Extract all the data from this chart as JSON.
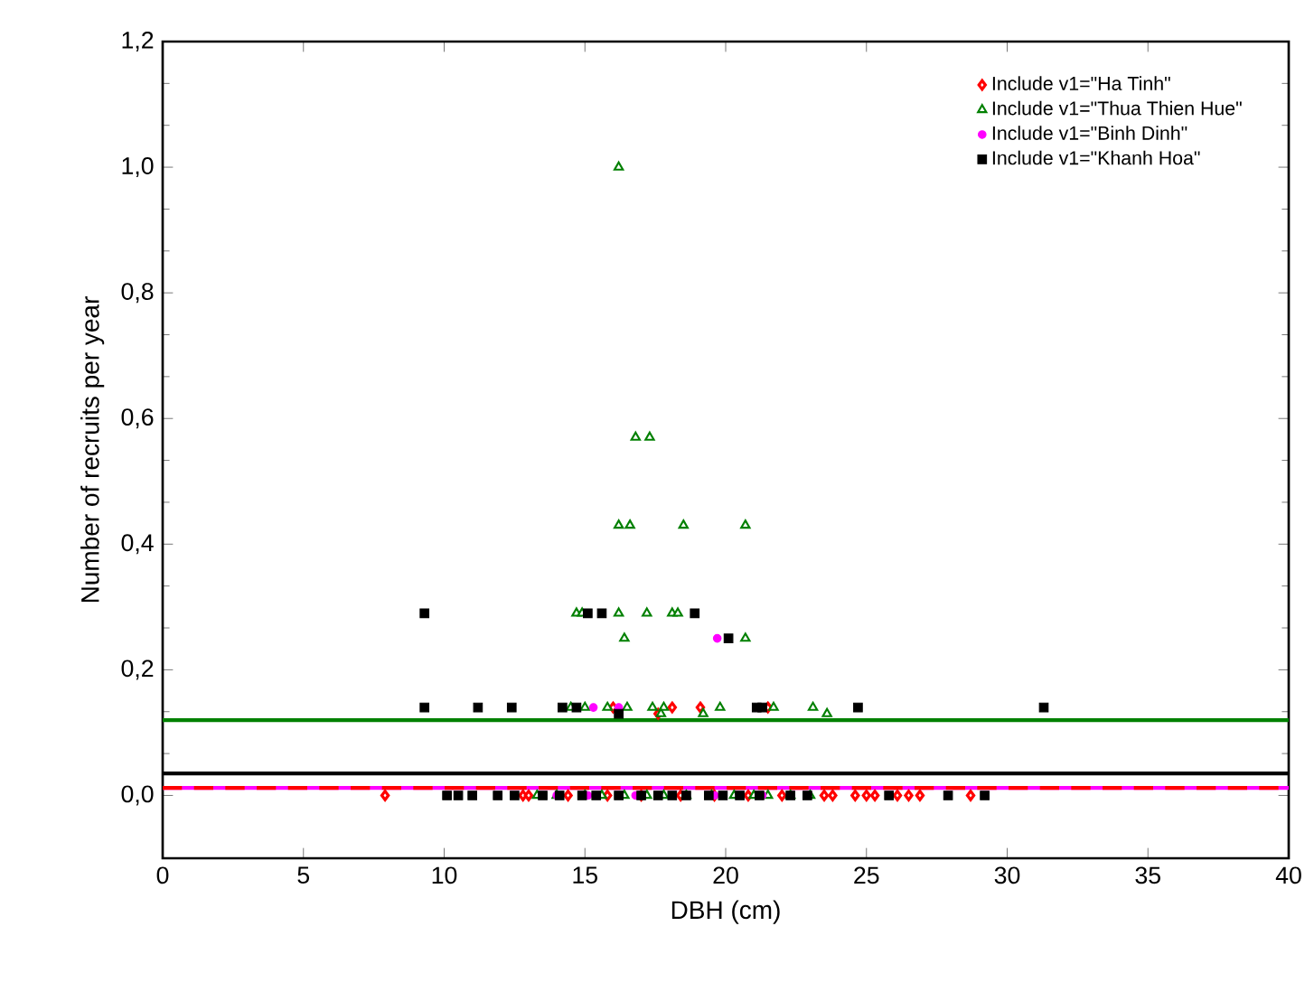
{
  "chart_data": {
    "type": "scatter",
    "xlabel": "DBH (cm)",
    "ylabel": "Number of recruits per year",
    "xlim": [
      0,
      40
    ],
    "xticks": [
      0,
      5,
      10,
      15,
      20,
      25,
      30,
      35,
      40
    ],
    "ylim": [
      -0.1,
      1.2
    ],
    "yticks": [
      {
        "value": 0,
        "label": "0,0"
      },
      {
        "value": 0.2,
        "label": "0,2"
      },
      {
        "value": 0.4,
        "label": "0,4"
      },
      {
        "value": 0.6,
        "label": "0,6"
      },
      {
        "value": 0.8,
        "label": "0,8"
      },
      {
        "value": 1.0,
        "label": "1,0"
      },
      {
        "value": 1.2,
        "label": "1,2"
      }
    ],
    "legend": "top right",
    "grid": false,
    "series": [
      {
        "name": "Include v1=\"Ha Tinh\"",
        "color": "#ff0000",
        "marker": "diamond",
        "x": [
          7.9,
          12.8,
          13.0,
          14.4,
          15.8,
          17.0,
          18.4,
          19.6,
          20.8,
          22.0,
          23.5,
          23.8,
          24.6,
          25.0,
          25.3,
          26.1,
          26.5,
          26.9,
          28.7,
          16.0,
          18.1,
          19.1,
          21.5,
          17.6
        ],
        "values": [
          0,
          0,
          0,
          0,
          0,
          0,
          0,
          0,
          0,
          0,
          0,
          0,
          0,
          0,
          0,
          0,
          0,
          0,
          0,
          0.14,
          0.14,
          0.14,
          0.14,
          0.13
        ]
      },
      {
        "name": "Include v1=\"Thua Thien Hue\"",
        "color": "#008000",
        "marker": "triangle",
        "x": [
          13.3,
          14.0,
          15.0,
          15.6,
          16.4,
          17.2,
          17.8,
          18.6,
          19.5,
          20.3,
          21.0,
          21.5,
          22.3,
          23.0,
          16.2,
          16.8,
          17.3,
          16.2,
          16.6,
          18.5,
          20.7,
          14.7,
          14.9,
          16.2,
          17.2,
          18.1,
          18.3,
          16.4,
          20.7,
          14.5,
          15.0,
          15.8,
          16.5,
          17.4,
          17.8,
          19.8,
          21.7,
          23.1,
          17.7,
          19.2,
          23.6
        ],
        "values": [
          0,
          0,
          0,
          0,
          0,
          0,
          0,
          0,
          0,
          0,
          0,
          0,
          0,
          0,
          1.0,
          0.57,
          0.57,
          0.43,
          0.43,
          0.43,
          0.43,
          0.29,
          0.29,
          0.29,
          0.29,
          0.29,
          0.29,
          0.25,
          0.25,
          0.14,
          0.14,
          0.14,
          0.14,
          0.14,
          0.14,
          0.14,
          0.14,
          0.14,
          0.13,
          0.13,
          0.13
        ]
      },
      {
        "name": "Include v1=\"Binh Dinh\"",
        "color": "#ff00ff",
        "marker": "circle",
        "x": [
          14.0,
          15.1,
          16.8,
          19.6,
          21.3,
          19.7,
          15.3,
          16.2
        ],
        "values": [
          0,
          0,
          0,
          0,
          0,
          0.25,
          0.14,
          0.14
        ]
      },
      {
        "name": "Include v1=\"Khanh Hoa\"",
        "color": "#000000",
        "marker": "square",
        "x": [
          10.1,
          10.5,
          11.0,
          11.9,
          12.5,
          13.5,
          14.1,
          14.9,
          15.4,
          16.2,
          17.0,
          17.6,
          18.1,
          18.6,
          19.4,
          19.9,
          20.5,
          21.2,
          22.3,
          22.9,
          25.8,
          27.9,
          29.2,
          9.3,
          15.1,
          15.6,
          18.9,
          20.1,
          9.3,
          11.2,
          12.4,
          14.2,
          14.7,
          21.1,
          21.3,
          24.7,
          31.3,
          16.2
        ],
        "values": [
          0,
          0,
          0,
          0,
          0,
          0,
          0,
          0,
          0,
          0,
          0,
          0,
          0,
          0,
          0,
          0,
          0,
          0,
          0,
          0,
          0,
          0,
          0,
          0.29,
          0.29,
          0.29,
          0.29,
          0.25,
          0.14,
          0.14,
          0.14,
          0.14,
          0.14,
          0.14,
          0.14,
          0.14,
          0.14,
          0.13
        ]
      }
    ],
    "ref_lines": [
      {
        "axis": "y",
        "value": 0.12,
        "color": "#008000",
        "line_style": "solid"
      },
      {
        "axis": "y",
        "value": 0.035,
        "color": "#000000",
        "line_style": "solid"
      },
      {
        "axis": "y",
        "value": 0.012,
        "color": "#ff00ff",
        "line_style": "solid"
      },
      {
        "axis": "y",
        "value": 0.012,
        "color": "#ff0000",
        "line_style": "dashed"
      }
    ]
  }
}
